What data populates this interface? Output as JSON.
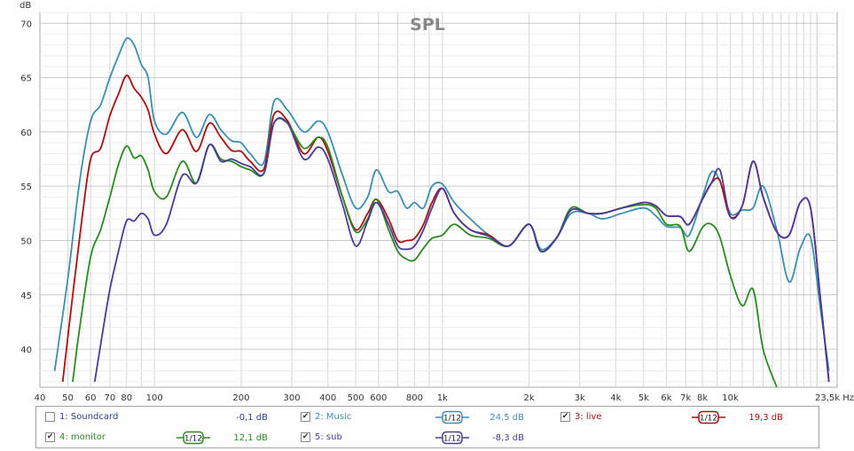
{
  "chart_data": {
    "type": "line",
    "title": "SPL",
    "xlabel": "Hz",
    "ylabel": "dB",
    "xscale": "log",
    "xlim": [
      40,
      23500
    ],
    "ylim": [
      36.5,
      71
    ],
    "grid": true,
    "x_tick_labels": [
      {
        "x": 40,
        "label": "40"
      },
      {
        "x": 50,
        "label": "50"
      },
      {
        "x": 60,
        "label": "60"
      },
      {
        "x": 70,
        "label": "70"
      },
      {
        "x": 80,
        "label": "80"
      },
      {
        "x": 100,
        "label": "100"
      },
      {
        "x": 200,
        "label": "200"
      },
      {
        "x": 300,
        "label": "300"
      },
      {
        "x": 400,
        "label": "400"
      },
      {
        "x": 500,
        "label": "500"
      },
      {
        "x": 600,
        "label": "600"
      },
      {
        "x": 800,
        "label": "800"
      },
      {
        "x": 1000,
        "label": "1k"
      },
      {
        "x": 2000,
        "label": "2k"
      },
      {
        "x": 3000,
        "label": "3k"
      },
      {
        "x": 4000,
        "label": "4k"
      },
      {
        "x": 5000,
        "label": "5k"
      },
      {
        "x": 6000,
        "label": "6k"
      },
      {
        "x": 7000,
        "label": "7k"
      },
      {
        "x": 8000,
        "label": "8k"
      },
      {
        "x": 10000,
        "label": "10k"
      },
      {
        "x": 23500,
        "label": "23,5k Hz"
      }
    ],
    "y_ticks": [
      40,
      45,
      50,
      55,
      60,
      65,
      70
    ],
    "series": [
      {
        "name": "2: Music",
        "color": "#3a8fb0",
        "points": [
          [
            45,
            38
          ],
          [
            50,
            46.5
          ],
          [
            55,
            55.5
          ],
          [
            60,
            61
          ],
          [
            65,
            62.5
          ],
          [
            70,
            65
          ],
          [
            75,
            67
          ],
          [
            80,
            68.6
          ],
          [
            85,
            68
          ],
          [
            90,
            66.2
          ],
          [
            95,
            65
          ],
          [
            100,
            61
          ],
          [
            110,
            59.8
          ],
          [
            125,
            61.8
          ],
          [
            140,
            59.5
          ],
          [
            155,
            61.6
          ],
          [
            170,
            60.2
          ],
          [
            185,
            59.2
          ],
          [
            200,
            59
          ],
          [
            215,
            58
          ],
          [
            240,
            57.2
          ],
          [
            260,
            62.8
          ],
          [
            290,
            62
          ],
          [
            330,
            60
          ],
          [
            370,
            61
          ],
          [
            400,
            60
          ],
          [
            450,
            56
          ],
          [
            500,
            53
          ],
          [
            550,
            54
          ],
          [
            590,
            56.5
          ],
          [
            650,
            54.5
          ],
          [
            700,
            54.5
          ],
          [
            750,
            53
          ],
          [
            800,
            53.5
          ],
          [
            860,
            53
          ],
          [
            920,
            55
          ],
          [
            1000,
            55.2
          ],
          [
            1100,
            53.5
          ],
          [
            1250,
            52
          ],
          [
            1450,
            50.5
          ],
          [
            1700,
            49.5
          ],
          [
            2000,
            51.5
          ],
          [
            2200,
            49.2
          ],
          [
            2500,
            50.3
          ],
          [
            2800,
            52.5
          ],
          [
            3200,
            52.5
          ],
          [
            3600,
            52
          ],
          [
            4200,
            52.5
          ],
          [
            5000,
            53
          ],
          [
            5500,
            52.3
          ],
          [
            6000,
            51.3
          ],
          [
            6700,
            51.2
          ],
          [
            7200,
            50.5
          ],
          [
            8000,
            54
          ],
          [
            8600,
            56.3
          ],
          [
            9200,
            55.5
          ],
          [
            10000,
            52.5
          ],
          [
            11000,
            52.8
          ],
          [
            12000,
            53
          ],
          [
            13000,
            55
          ],
          [
            14500,
            51
          ],
          [
            16000,
            46.2
          ],
          [
            17500,
            49.3
          ],
          [
            19000,
            50.3
          ],
          [
            20500,
            44
          ],
          [
            22000,
            38
          ]
        ]
      },
      {
        "name": "3: live",
        "color": "#aa1010",
        "points": [
          [
            48,
            37
          ],
          [
            52,
            45
          ],
          [
            56,
            52
          ],
          [
            60,
            57.5
          ],
          [
            65,
            58.5
          ],
          [
            70,
            61.5
          ],
          [
            75,
            63.5
          ],
          [
            80,
            65.2
          ],
          [
            85,
            64
          ],
          [
            90,
            63.2
          ],
          [
            95,
            62
          ],
          [
            100,
            59.8
          ],
          [
            110,
            58
          ],
          [
            125,
            60.2
          ],
          [
            140,
            58.2
          ],
          [
            155,
            60.8
          ],
          [
            170,
            59.5
          ],
          [
            185,
            58.3
          ],
          [
            200,
            58.2
          ],
          [
            215,
            57.3
          ],
          [
            240,
            56.6
          ],
          [
            260,
            61.6
          ],
          [
            290,
            61
          ],
          [
            330,
            58
          ],
          [
            370,
            59.5
          ],
          [
            400,
            58.2
          ],
          [
            450,
            54
          ],
          [
            500,
            51
          ],
          [
            550,
            52.5
          ],
          [
            590,
            53.8
          ],
          [
            650,
            52
          ],
          [
            700,
            50
          ],
          [
            750,
            50
          ],
          [
            800,
            50.2
          ],
          [
            860,
            51.5
          ],
          [
            920,
            53.5
          ],
          [
            1000,
            54.8
          ],
          [
            1100,
            52.5
          ],
          [
            1250,
            51
          ],
          [
            1450,
            50.5
          ],
          [
            1700,
            49.5
          ],
          [
            2000,
            51.5
          ],
          [
            2200,
            49
          ],
          [
            2500,
            50.3
          ],
          [
            2800,
            52.8
          ],
          [
            3200,
            52.5
          ],
          [
            3600,
            52.5
          ],
          [
            4200,
            53
          ],
          [
            5000,
            53.5
          ],
          [
            5500,
            53.2
          ],
          [
            6000,
            52.3
          ],
          [
            6700,
            52.2
          ],
          [
            7200,
            51.5
          ],
          [
            8000,
            53.8
          ],
          [
            8600,
            55.3
          ],
          [
            9200,
            55.5
          ],
          [
            10000,
            52.2
          ],
          [
            11000,
            53.2
          ],
          [
            12000,
            57.3
          ],
          [
            13000,
            54
          ],
          [
            14500,
            50.8
          ],
          [
            16000,
            50.5
          ],
          [
            17500,
            53.5
          ],
          [
            19000,
            53
          ],
          [
            20500,
            45
          ],
          [
            22000,
            37
          ]
        ]
      },
      {
        "name": "4: monitor",
        "color": "#2a8a20",
        "points": [
          [
            52,
            37
          ],
          [
            55,
            42
          ],
          [
            60,
            48.5
          ],
          [
            65,
            51
          ],
          [
            70,
            54
          ],
          [
            75,
            57
          ],
          [
            80,
            58.7
          ],
          [
            85,
            57.6
          ],
          [
            90,
            57.8
          ],
          [
            95,
            56.5
          ],
          [
            100,
            54.5
          ],
          [
            110,
            54
          ],
          [
            125,
            57.3
          ],
          [
            140,
            55.3
          ],
          [
            155,
            58.8
          ],
          [
            170,
            57.5
          ],
          [
            185,
            57.3
          ],
          [
            200,
            56.8
          ],
          [
            215,
            56.5
          ],
          [
            240,
            56.2
          ],
          [
            260,
            60.8
          ],
          [
            290,
            60.8
          ],
          [
            330,
            58.5
          ],
          [
            370,
            59.5
          ],
          [
            400,
            58.6
          ],
          [
            450,
            54
          ],
          [
            500,
            50.8
          ],
          [
            550,
            52
          ],
          [
            590,
            53.8
          ],
          [
            650,
            51
          ],
          [
            700,
            49
          ],
          [
            750,
            48.3
          ],
          [
            800,
            48.2
          ],
          [
            860,
            49.3
          ],
          [
            920,
            50.2
          ],
          [
            1000,
            50.5
          ],
          [
            1100,
            51.5
          ],
          [
            1250,
            50.5
          ],
          [
            1450,
            50.2
          ],
          [
            1700,
            49.5
          ],
          [
            2000,
            51.5
          ],
          [
            2200,
            49
          ],
          [
            2500,
            50.3
          ],
          [
            2800,
            53
          ],
          [
            3200,
            52.5
          ],
          [
            3600,
            52.5
          ],
          [
            4200,
            53
          ],
          [
            5000,
            53.3
          ],
          [
            5500,
            53
          ],
          [
            6000,
            51.5
          ],
          [
            6700,
            51.3
          ],
          [
            7200,
            49
          ],
          [
            8000,
            51.2
          ],
          [
            8600,
            51.5
          ],
          [
            9200,
            50.3
          ],
          [
            10000,
            46.8
          ],
          [
            11000,
            44
          ],
          [
            12000,
            45.5
          ],
          [
            13000,
            40
          ],
          [
            14500,
            36.5
          ]
        ]
      },
      {
        "name": "5: sub",
        "color": "#4a3a9a",
        "points": [
          [
            62,
            37
          ],
          [
            66,
            41.5
          ],
          [
            70,
            45.5
          ],
          [
            75,
            49
          ],
          [
            80,
            51.8
          ],
          [
            85,
            51.8
          ],
          [
            90,
            52.5
          ],
          [
            95,
            52
          ],
          [
            100,
            50.5
          ],
          [
            110,
            51.5
          ],
          [
            125,
            56
          ],
          [
            140,
            55.3
          ],
          [
            155,
            58.8
          ],
          [
            170,
            57.3
          ],
          [
            185,
            57.5
          ],
          [
            200,
            57.1
          ],
          [
            215,
            56.8
          ],
          [
            240,
            56.2
          ],
          [
            260,
            60.8
          ],
          [
            290,
            60.8
          ],
          [
            330,
            57.5
          ],
          [
            370,
            58.6
          ],
          [
            400,
            57.5
          ],
          [
            450,
            53.3
          ],
          [
            500,
            49.5
          ],
          [
            550,
            51.8
          ],
          [
            590,
            53.5
          ],
          [
            650,
            51.5
          ],
          [
            700,
            49.5
          ],
          [
            750,
            49.2
          ],
          [
            800,
            49.5
          ],
          [
            860,
            51
          ],
          [
            920,
            53
          ],
          [
            1000,
            54.8
          ],
          [
            1100,
            52.5
          ],
          [
            1250,
            51
          ],
          [
            1450,
            50.4
          ],
          [
            1700,
            49.5
          ],
          [
            2000,
            51.5
          ],
          [
            2200,
            49
          ],
          [
            2500,
            50.3
          ],
          [
            2800,
            52.8
          ],
          [
            3200,
            52.5
          ],
          [
            3600,
            52.5
          ],
          [
            4200,
            53
          ],
          [
            5000,
            53.5
          ],
          [
            5500,
            53.2
          ],
          [
            6000,
            52.3
          ],
          [
            6700,
            52.2
          ],
          [
            7200,
            51.5
          ],
          [
            8000,
            53.8
          ],
          [
            8600,
            55.3
          ],
          [
            9200,
            56.5
          ],
          [
            10000,
            52.2
          ],
          [
            11000,
            53.2
          ],
          [
            12000,
            57.3
          ],
          [
            13000,
            54
          ],
          [
            14500,
            50.8
          ],
          [
            16000,
            50.5
          ],
          [
            17500,
            53.5
          ],
          [
            19000,
            53
          ],
          [
            20500,
            45
          ],
          [
            22000,
            37
          ]
        ]
      }
    ]
  },
  "legend": {
    "items": [
      {
        "label": "1: Soundcard",
        "checked": false,
        "value": "-0,1 dB",
        "color": "#2a3a8a",
        "smoothing": ""
      },
      {
        "label": "2: Music",
        "checked": true,
        "value": "24,5 dB",
        "color": "#3a8fb0",
        "smoothing": "1/12"
      },
      {
        "label": "3: live",
        "checked": true,
        "value": "19,3 dB",
        "color": "#aa1010",
        "smoothing": "1/12"
      },
      {
        "label": "4: monitor",
        "checked": true,
        "value": "12,1 dB",
        "color": "#2a8a20",
        "smoothing": "1/12"
      },
      {
        "label": "5: sub",
        "checked": true,
        "value": "-8,3 dB",
        "color": "#4a3a9a",
        "smoothing": "1/12"
      }
    ]
  }
}
